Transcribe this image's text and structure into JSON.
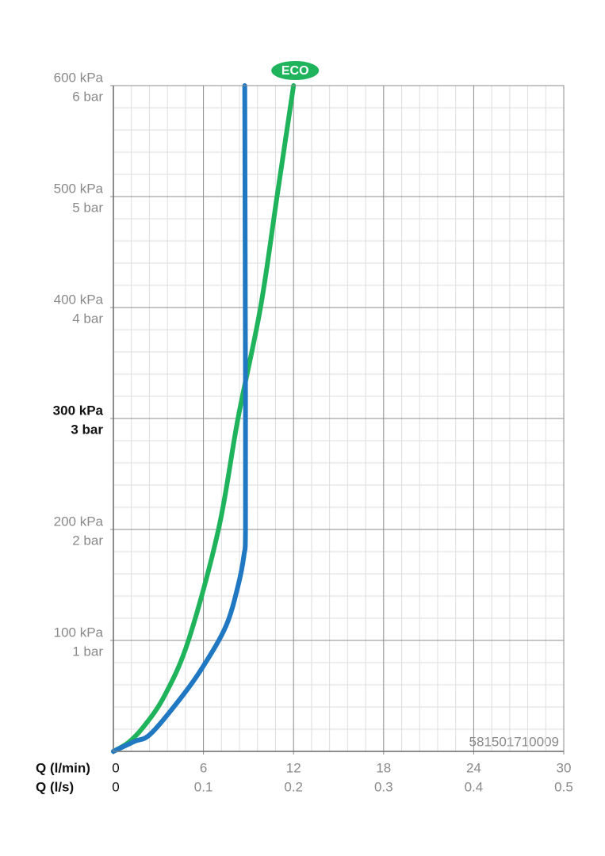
{
  "chart_data": {
    "type": "line",
    "xlabel": "Q (l/min)",
    "x2label": "Q (l/s)",
    "xlim": [
      0,
      30
    ],
    "xticks": [
      0,
      6,
      12,
      18,
      24,
      30
    ],
    "x2lim": [
      0,
      0.5
    ],
    "x2ticks": [
      0,
      0.1,
      0.2,
      0.3,
      0.4,
      0.5
    ],
    "ylim": [
      0,
      600
    ],
    "yticks": [
      {
        "value": 100,
        "label": "100 kPa"
      },
      {
        "value": 200,
        "label": "200 kPa"
      },
      {
        "value": 300,
        "label": "300 kPa"
      },
      {
        "value": 400,
        "label": "400 kPa"
      },
      {
        "value": 500,
        "label": "500 kPa"
      },
      {
        "value": 600,
        "label": "600 kPa"
      }
    ],
    "y2lim": [
      0,
      6
    ],
    "y2ticks": [
      {
        "value": 1,
        "label": "1 bar"
      },
      {
        "value": 2,
        "label": "2 bar"
      },
      {
        "value": 3,
        "label": "3 bar"
      },
      {
        "value": 4,
        "label": "4 bar"
      },
      {
        "value": 5,
        "label": "5 bar"
      },
      {
        "value": 6,
        "label": "6 bar"
      }
    ],
    "bold_ytick": 300,
    "grid": true,
    "minor_divisions": 5,
    "annotation": "581501710009",
    "series": [
      {
        "name": "ECO",
        "color": "#1fb35c",
        "x": [
          0,
          1,
          2,
          3.4,
          5,
          7,
          8.3,
          9.8,
          10.9,
          12
        ],
        "values": [
          0,
          8,
          22,
          50,
          100,
          200,
          300,
          400,
          500,
          600
        ]
      },
      {
        "color": "#1f78c1",
        "x": [
          0,
          1.4,
          2.5,
          4.6,
          6,
          7.5,
          8.3,
          8.7,
          8.8,
          8.8,
          8.75
        ],
        "values": [
          0,
          9,
          16,
          50,
          77,
          113,
          149,
          177,
          200,
          320,
          600
        ]
      }
    ]
  }
}
